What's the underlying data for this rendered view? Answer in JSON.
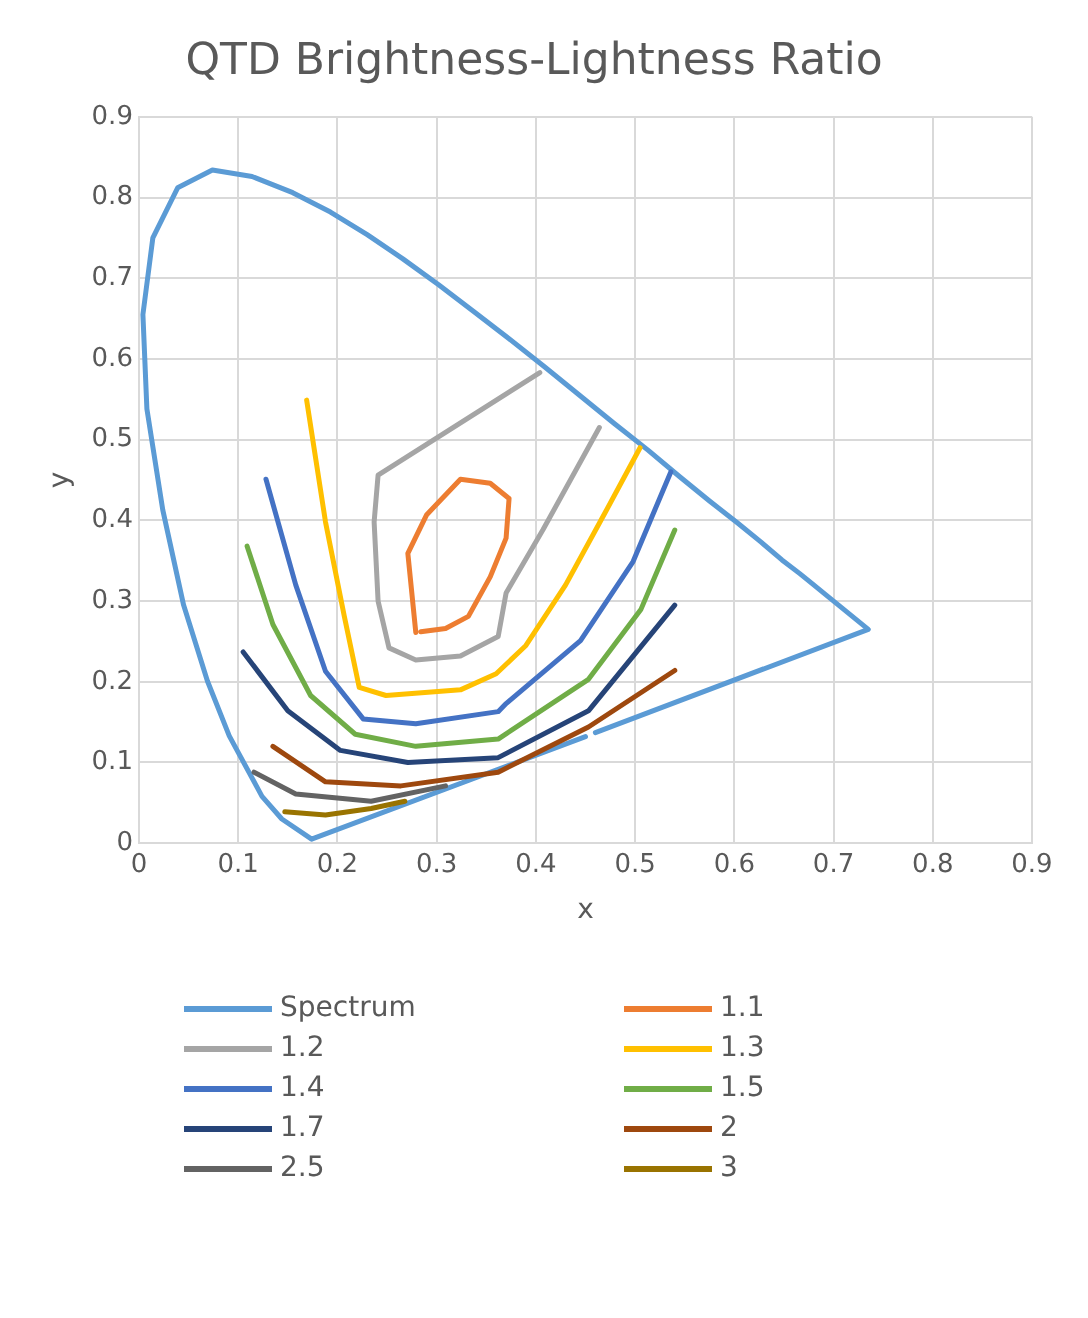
{
  "chart_data": {
    "type": "line",
    "title": "QTD Brightness-Lightness Ratio",
    "xlabel": "x",
    "ylabel": "y",
    "xlim": [
      0,
      0.9
    ],
    "ylim": [
      0,
      0.9
    ],
    "xticks": [
      0,
      0.1,
      0.2,
      0.3,
      0.4,
      0.5,
      0.6,
      0.7,
      0.8,
      0.9
    ],
    "yticks": [
      0,
      0.1,
      0.2,
      0.3,
      0.4,
      0.5,
      0.6,
      0.7,
      0.8,
      0.9
    ],
    "grid": true,
    "legend": "bottom",
    "marker": "none",
    "line_style": "solid",
    "series": [
      {
        "name": "Spectrum",
        "color": "#5b9bd5",
        "x": [
          0.45,
          0.174,
          0.144,
          0.124,
          0.091,
          0.069,
          0.045,
          0.024,
          0.008,
          0.004,
          0.014,
          0.039,
          0.074,
          0.114,
          0.155,
          0.193,
          0.23,
          0.266,
          0.302,
          0.337,
          0.373,
          0.409,
          0.444,
          0.479,
          0.513,
          0.545,
          0.575,
          0.603,
          0.627,
          0.648,
          0.666,
          0.68,
          0.692,
          0.701,
          0.735,
          0.46
        ],
        "values": [
          0.132,
          0.005,
          0.03,
          0.058,
          0.133,
          0.201,
          0.295,
          0.413,
          0.538,
          0.655,
          0.75,
          0.812,
          0.834,
          0.826,
          0.806,
          0.782,
          0.754,
          0.724,
          0.692,
          0.659,
          0.625,
          0.59,
          0.555,
          0.52,
          0.487,
          0.454,
          0.424,
          0.397,
          0.373,
          0.351,
          0.334,
          0.32,
          0.308,
          0.299,
          0.265,
          0.137
        ]
      },
      {
        "name": "1.1",
        "color": "#ed7d31",
        "x": [
          0.279,
          0.271,
          0.29,
          0.324,
          0.354,
          0.373,
          0.37,
          0.354,
          0.332,
          0.309,
          0.284
        ],
        "values": [
          0.261,
          0.359,
          0.407,
          0.451,
          0.446,
          0.427,
          0.378,
          0.33,
          0.281,
          0.266,
          0.262
        ]
      },
      {
        "name": "1.2",
        "color": "#a5a5a5",
        "x": [
          0.404,
          0.241,
          0.237,
          0.241,
          0.252,
          0.279,
          0.324,
          0.362,
          0.37,
          0.407,
          0.464
        ],
        "values": [
          0.583,
          0.456,
          0.398,
          0.3,
          0.242,
          0.227,
          0.232,
          0.256,
          0.31,
          0.388,
          0.515
        ]
      },
      {
        "name": "1.3",
        "color": "#ffc000",
        "x": [
          0.169,
          0.188,
          0.207,
          0.222,
          0.249,
          0.324,
          0.36,
          0.39,
          0.43,
          0.47,
          0.505
        ],
        "values": [
          0.549,
          0.398,
          0.281,
          0.193,
          0.183,
          0.19,
          0.21,
          0.245,
          0.32,
          0.41,
          0.49
        ]
      },
      {
        "name": "1.4",
        "color": "#4472c4",
        "x": [
          0.128,
          0.158,
          0.188,
          0.226,
          0.279,
          0.362,
          0.37,
          0.445,
          0.498,
          0.536
        ],
        "values": [
          0.451,
          0.32,
          0.213,
          0.154,
          0.148,
          0.163,
          0.173,
          0.251,
          0.349,
          0.46
        ]
      },
      {
        "name": "1.5",
        "color": "#70ad47",
        "x": [
          0.109,
          0.135,
          0.173,
          0.218,
          0.279,
          0.362,
          0.453,
          0.506,
          0.54
        ],
        "values": [
          0.368,
          0.271,
          0.183,
          0.135,
          0.12,
          0.129,
          0.203,
          0.29,
          0.388
        ]
      },
      {
        "name": "1.7",
        "color": "#264478",
        "x": [
          0.105,
          0.15,
          0.203,
          0.271,
          0.362,
          0.453,
          0.54
        ],
        "values": [
          0.237,
          0.164,
          0.115,
          0.1,
          0.106,
          0.164,
          0.295
        ]
      },
      {
        "name": "2",
        "color": "#9e480e",
        "x": [
          0.135,
          0.188,
          0.264,
          0.362,
          0.453,
          0.54
        ],
        "values": [
          0.12,
          0.076,
          0.071,
          0.088,
          0.144,
          0.214
        ]
      },
      {
        "name": "2.5",
        "color": "#636363",
        "x": [
          0.116,
          0.158,
          0.234,
          0.309
        ],
        "values": [
          0.088,
          0.061,
          0.052,
          0.071
        ]
      },
      {
        "name": "3",
        "color": "#997300",
        "x": [
          0.147,
          0.188,
          0.234,
          0.268
        ],
        "values": [
          0.039,
          0.035,
          0.043,
          0.052
        ]
      }
    ]
  }
}
